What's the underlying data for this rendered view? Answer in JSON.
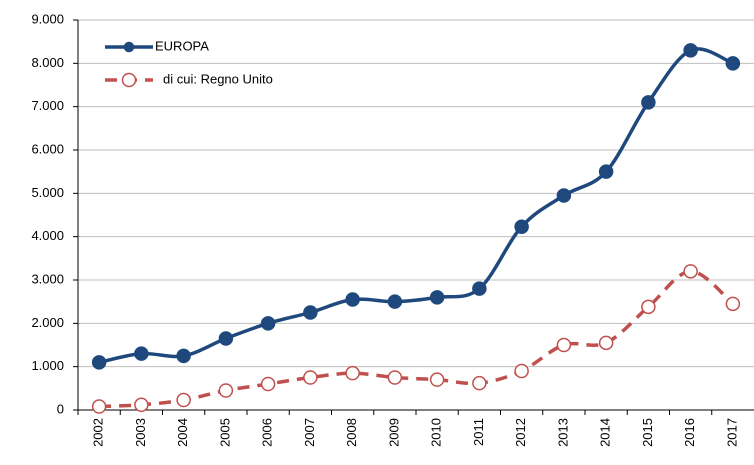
{
  "chart_data": {
    "type": "line",
    "categories": [
      "2002",
      "2003",
      "2004",
      "2005",
      "2006",
      "2007",
      "2008",
      "2009",
      "2010",
      "2011",
      "2012",
      "2013",
      "2014",
      "2015",
      "2016",
      "2017"
    ],
    "series": [
      {
        "name": "EUROPA",
        "color": "#1f497d",
        "dash": false,
        "values": [
          1100,
          1300,
          1250,
          1650,
          2000,
          2250,
          2550,
          2500,
          2600,
          2800,
          4230,
          4950,
          5500,
          7100,
          8300,
          8000
        ]
      },
      {
        "name": "di cui: Regno Unito",
        "color": "#c0504d",
        "dash": true,
        "values": [
          80,
          120,
          230,
          450,
          600,
          750,
          850,
          750,
          700,
          620,
          900,
          1500,
          1550,
          2380,
          3200,
          2450
        ]
      }
    ],
    "ylim": [
      0,
      9000
    ],
    "yticks": [
      {
        "value": 0,
        "label": "0"
      },
      {
        "value": 1000,
        "label": "1.000"
      },
      {
        "value": 2000,
        "label": "2.000"
      },
      {
        "value": 3000,
        "label": "3.000"
      },
      {
        "value": 4000,
        "label": "4.000"
      },
      {
        "value": 5000,
        "label": "5.000"
      },
      {
        "value": 6000,
        "label": "6.000"
      },
      {
        "value": 7000,
        "label": "7.000"
      },
      {
        "value": 8000,
        "label": "8.000"
      },
      {
        "value": 9000,
        "label": "9.000"
      }
    ],
    "grid": true,
    "legend": "top-left"
  }
}
